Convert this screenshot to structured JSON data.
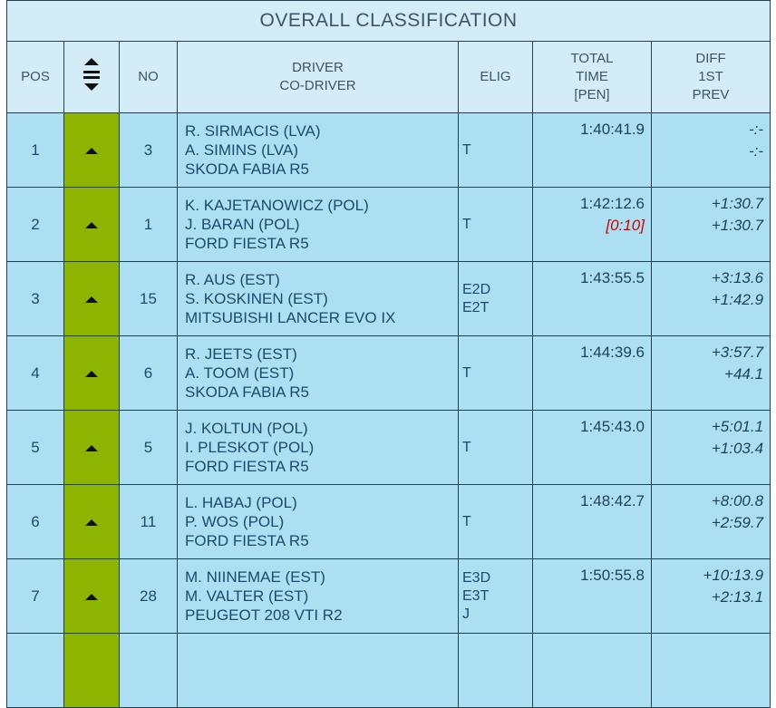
{
  "header": {
    "title": "OVERALL CLASSIFICATION"
  },
  "table": {
    "columns": [
      [
        "POS"
      ],
      [],
      [
        "NO"
      ],
      [
        "DRIVER",
        "CO-DRIVER"
      ],
      [
        "ELIG"
      ],
      [
        "TOTAL",
        "TIME",
        "[PEN]"
      ],
      [
        "DIFF",
        "1ST",
        "PREV"
      ]
    ],
    "rows": [
      {
        "pos": "1",
        "no": "3",
        "crew": [
          "R. SIRMACIS (LVA)",
          "A. SIMINS (LVA)",
          "SKODA FABIA R5"
        ],
        "elig": [
          "T"
        ],
        "time": "1:40:41.9",
        "penalty": null,
        "diff": [
          "-:-",
          "-:-"
        ]
      },
      {
        "pos": "2",
        "no": "1",
        "crew": [
          "K. KAJETANOWICZ (POL)",
          "J. BARAN (POL)",
          "FORD FIESTA R5"
        ],
        "elig": [
          "T"
        ],
        "time": "1:42:12.6",
        "penalty": "[0:10]",
        "diff": [
          "+1:30.7",
          "+1:30.7"
        ]
      },
      {
        "pos": "3",
        "no": "15",
        "crew": [
          "R. AUS (EST)",
          "S. KOSKINEN (EST)",
          "MITSUBISHI LANCER EVO IX"
        ],
        "elig": [
          "E2D",
          "E2T"
        ],
        "time": "1:43:55.5",
        "penalty": null,
        "diff": [
          "+3:13.6",
          "+1:42.9"
        ]
      },
      {
        "pos": "4",
        "no": "6",
        "crew": [
          "R. JEETS (EST)",
          "A. TOOM (EST)",
          "SKODA FABIA R5"
        ],
        "elig": [
          "T"
        ],
        "time": "1:44:39.6",
        "penalty": null,
        "diff": [
          "+3:57.7",
          "+44.1"
        ]
      },
      {
        "pos": "5",
        "no": "5",
        "crew": [
          "J. KOLTUN (POL)",
          "I. PLESKOT (POL)",
          "FORD FIESTA R5"
        ],
        "elig": [
          "T"
        ],
        "time": "1:45:43.0",
        "penalty": null,
        "diff": [
          "+5:01.1",
          "+1:03.4"
        ]
      },
      {
        "pos": "6",
        "no": "11",
        "crew": [
          "L. HABAJ (POL)",
          "P. WOS (POL)",
          "FORD FIESTA R5"
        ],
        "elig": [
          "T"
        ],
        "time": "1:48:42.7",
        "penalty": null,
        "diff": [
          "+8:00.8",
          "+2:59.7"
        ]
      },
      {
        "pos": "7",
        "no": "28",
        "crew": [
          "M. NIINEMAE (EST)",
          "M. VALTER (EST)",
          "PEUGEOT 208 VTI R2"
        ],
        "elig": [
          "E3D",
          "E3T",
          "J"
        ],
        "time": "1:50:55.8",
        "penalty": null,
        "diff": [
          "+10:13.9",
          "+2:13.1"
        ]
      }
    ]
  }
}
